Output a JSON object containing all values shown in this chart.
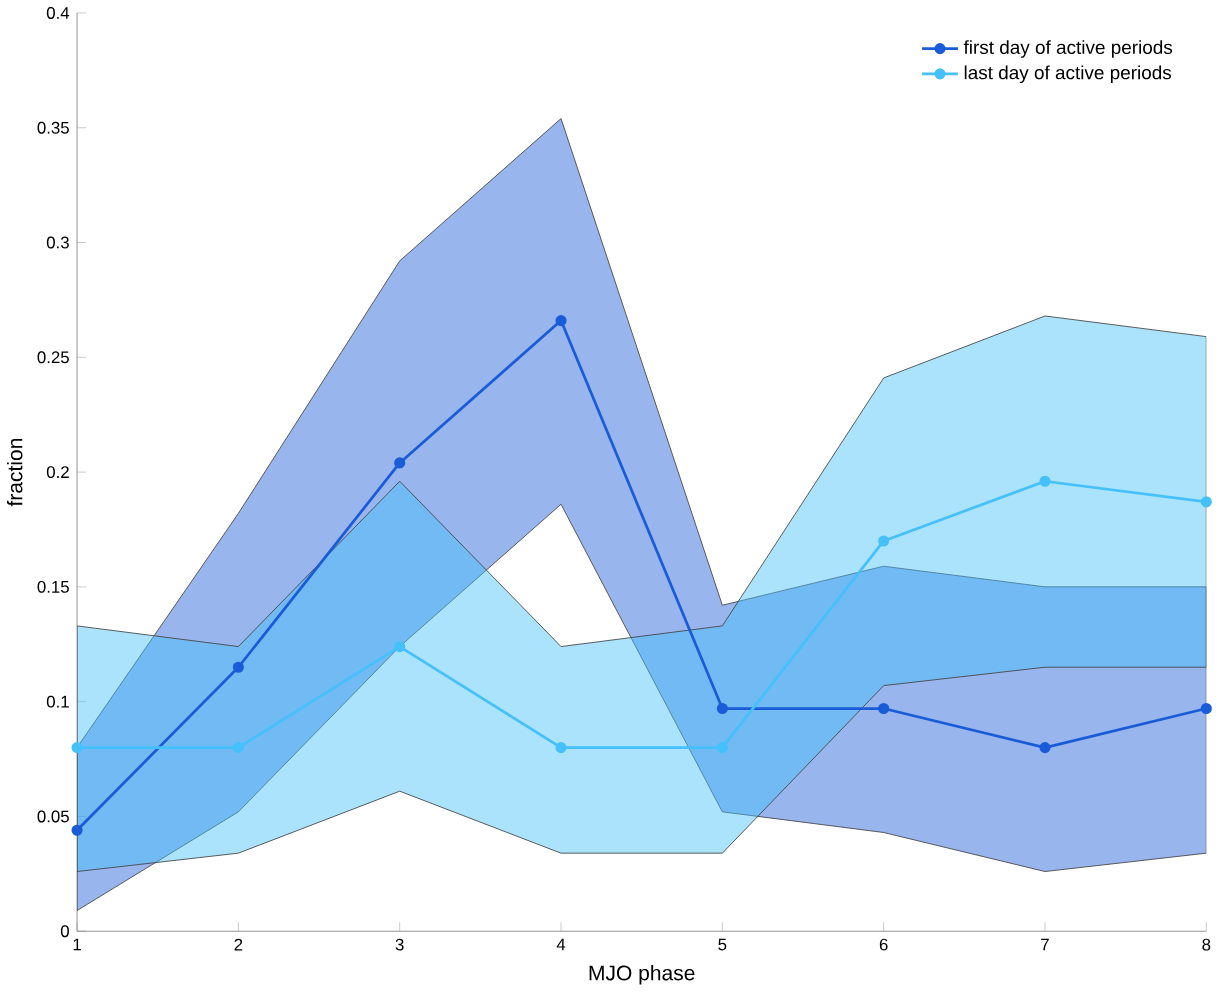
{
  "chart_data": {
    "type": "line",
    "xlabel": "MJO phase",
    "ylabel": "fraction",
    "x": [
      1,
      2,
      3,
      4,
      5,
      6,
      7,
      8
    ],
    "series": [
      {
        "name": "first day of active periods",
        "color": "#1a5cd8",
        "values": [
          0.044,
          0.115,
          0.204,
          0.266,
          0.097,
          0.097,
          0.08,
          0.097
        ],
        "lower": [
          0.009,
          0.052,
          0.124,
          0.186,
          0.052,
          0.043,
          0.026,
          0.034
        ],
        "upper": [
          0.08,
          0.182,
          0.292,
          0.354,
          0.142,
          0.159,
          0.15,
          0.15
        ]
      },
      {
        "name": "last day of active periods",
        "color": "#45c0fb",
        "values": [
          0.08,
          0.08,
          0.124,
          0.08,
          0.08,
          0.17,
          0.196,
          0.187
        ],
        "lower": [
          0.026,
          0.034,
          0.061,
          0.034,
          0.034,
          0.107,
          0.115,
          0.115
        ],
        "upper": [
          0.133,
          0.124,
          0.196,
          0.124,
          0.133,
          0.241,
          0.268,
          0.259
        ]
      }
    ],
    "xlim": [
      1,
      8
    ],
    "xticks": [
      1,
      2,
      3,
      4,
      5,
      6,
      7,
      8
    ],
    "ylim": [
      0,
      0.4
    ],
    "yticks": [
      0,
      0.05,
      0.1,
      0.15,
      0.2,
      0.25,
      0.3,
      0.35,
      0.4
    ],
    "grid": false,
    "legend": "top right",
    "marker": "circle",
    "line_style": "solid"
  }
}
